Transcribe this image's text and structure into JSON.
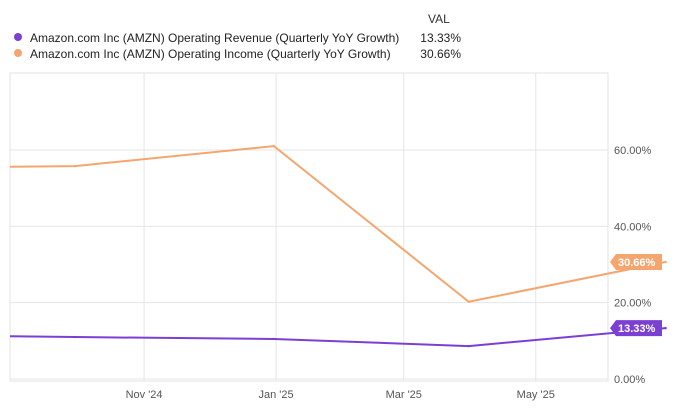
{
  "legend": {
    "value_header": "VAL",
    "items": [
      {
        "label": "Amazon.com Inc (AMZN) Operating Revenue (Quarterly YoY Growth)",
        "value": "13.33%",
        "color": "#7b3fd4"
      },
      {
        "label": "Amazon.com Inc (AMZN) Operating Income (Quarterly YoY Growth)",
        "value": "30.66%",
        "color": "#f4a66e"
      }
    ]
  },
  "chart_data": {
    "type": "line",
    "x": [
      "2024-09-30",
      "2024-12-31",
      "2025-03-31",
      "2025-06-30"
    ],
    "x_ticks": [
      "Nov '24",
      "Jan '25",
      "Mar '25",
      "May '25"
    ],
    "y_ticks": [
      "0.00%",
      "20.00%",
      "40.00%",
      "60.00%"
    ],
    "ylim": [
      0,
      70
    ],
    "grid": true,
    "series": [
      {
        "name": "Amazon.com Inc (AMZN) Operating Revenue (Quarterly YoY Growth)",
        "color": "#7b3fd4",
        "values": [
          10.99,
          10.49,
          8.62,
          13.33
        ],
        "end_label": "13.33%",
        "start_value": 11.2
      },
      {
        "name": "Amazon.com Inc (AMZN) Operating Income (Quarterly YoY Growth)",
        "color": "#f4a66e",
        "values": [
          55.77,
          61.01,
          20.24,
          30.66
        ],
        "end_label": "30.66%",
        "start_value": 55.6
      }
    ]
  }
}
